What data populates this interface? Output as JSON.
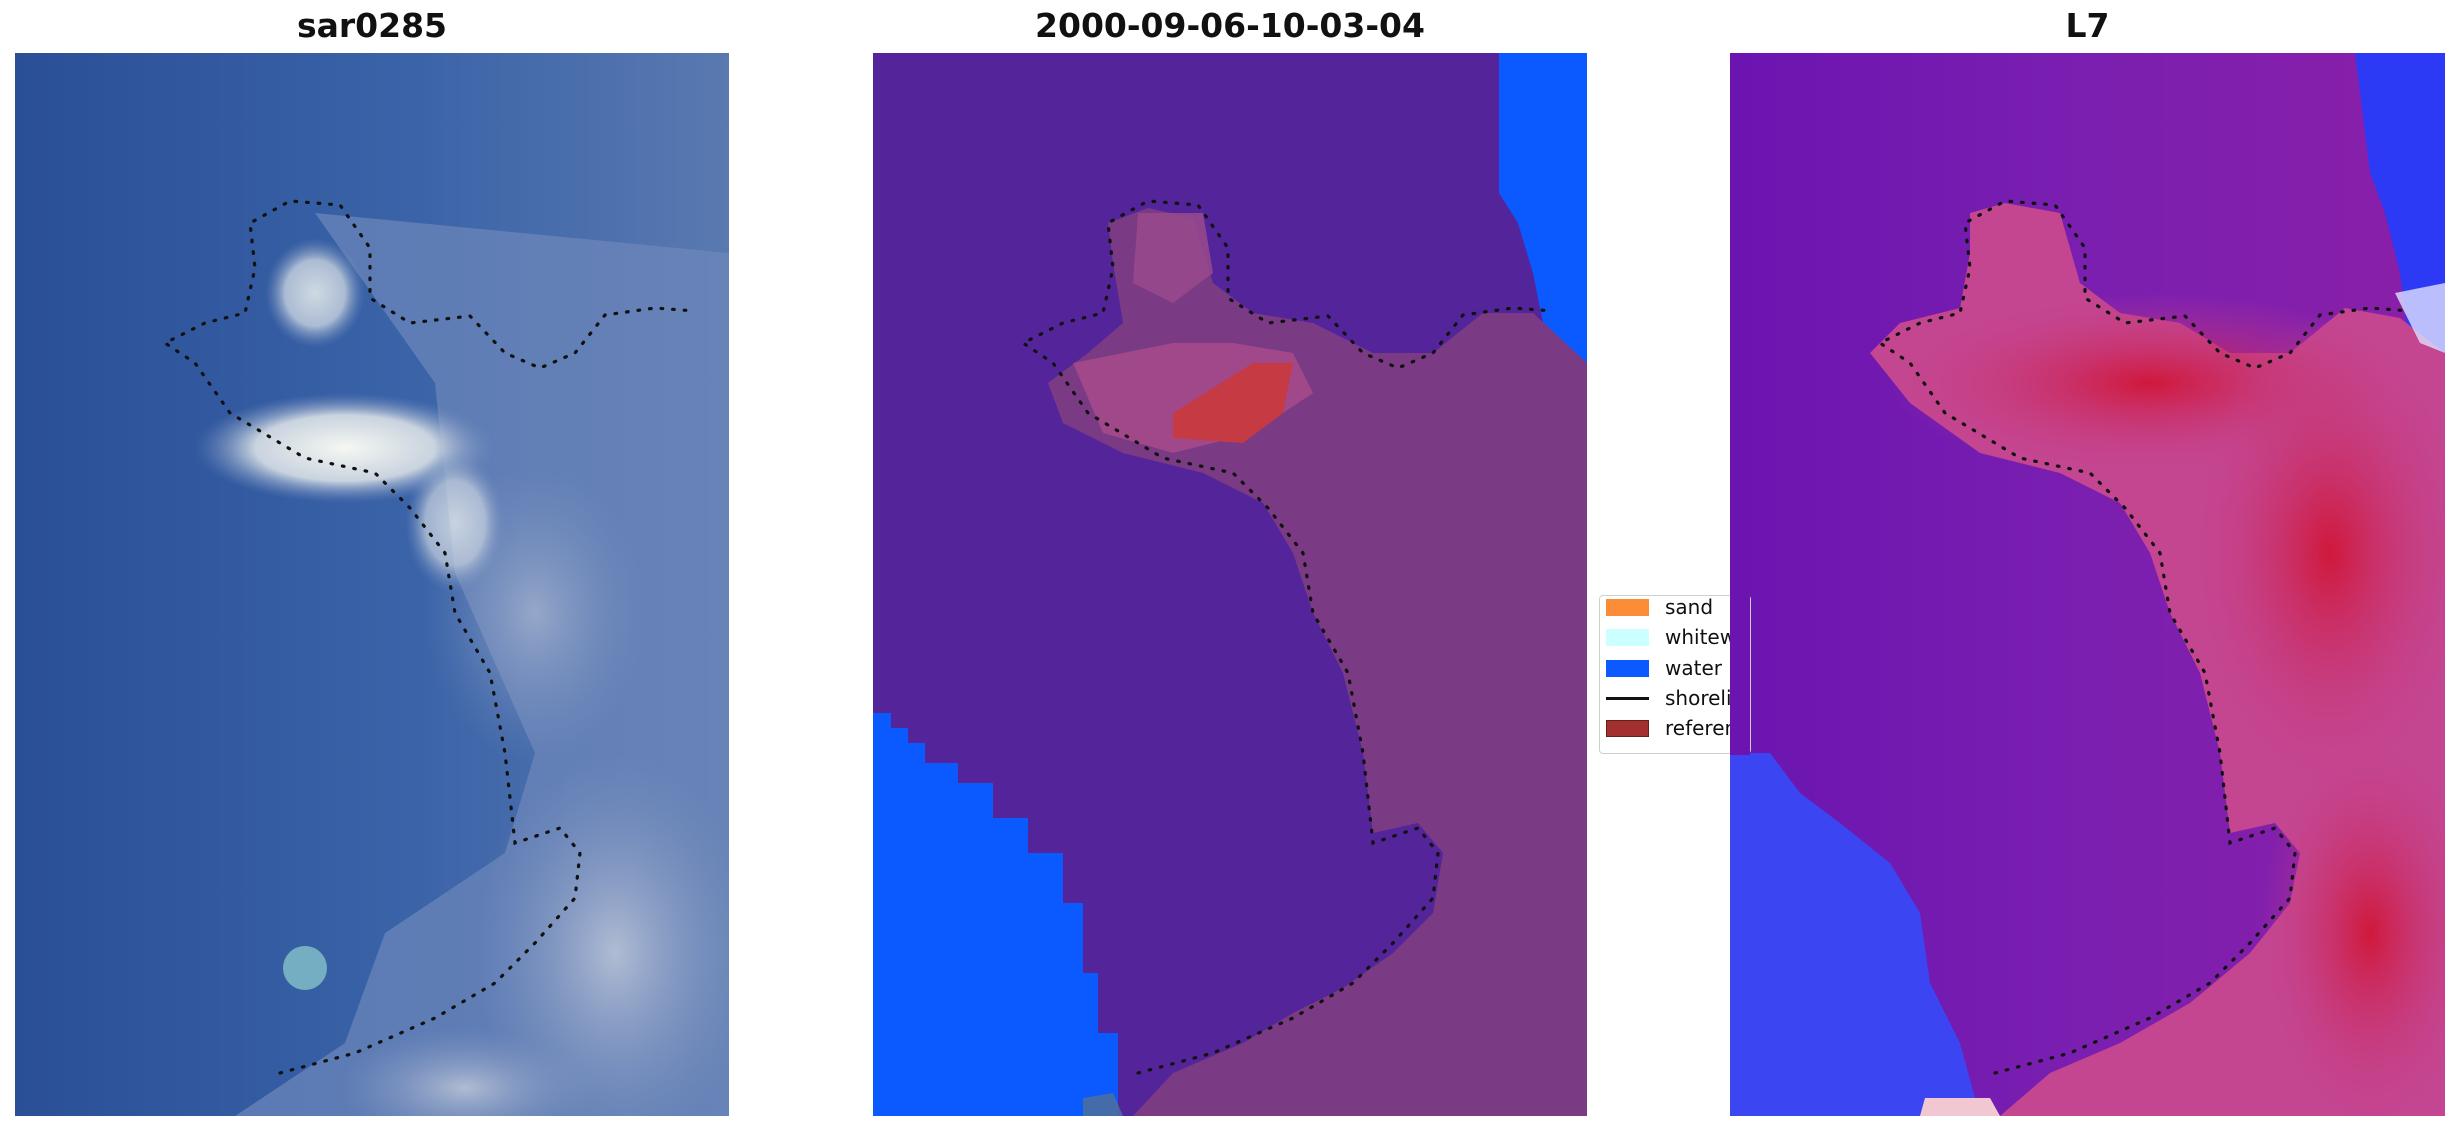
{
  "panels": [
    {
      "title": "sar0285"
    },
    {
      "title": "2000-09-06-10-03-04"
    },
    {
      "title": "L7"
    }
  ],
  "legend": {
    "items": [
      {
        "label": "sand",
        "color": "#fb8c38",
        "kind": "patch"
      },
      {
        "label": "whitewater",
        "color": "#ccffff",
        "kind": "patch"
      },
      {
        "label": "water",
        "color": "#0a5aff",
        "kind": "patch"
      },
      {
        "label": "shoreline",
        "color": "#111111",
        "kind": "line"
      },
      {
        "label": "reference",
        "color": "#a3302e",
        "kind": "patch"
      }
    ]
  },
  "colors": {
    "rgb_water": "#2f5aa0",
    "rgb_land": "#8a9cc0",
    "class_water_dark": "#54249a",
    "class_land": "#7a3a84",
    "class_water_light": "#0a5aff",
    "class_reference": "#c63a43",
    "mndwi_low": "#6b14b0",
    "mndwi_mid": "#c44590",
    "mndwi_high": "#c7183c",
    "mndwi_blue": "#2d3af5"
  }
}
